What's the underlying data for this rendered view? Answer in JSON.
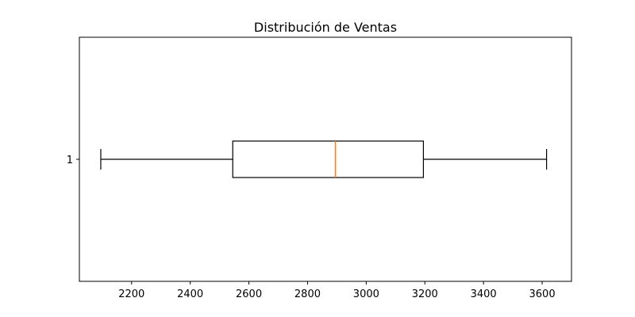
{
  "chart_data": {
    "type": "boxplot",
    "title": "Distribución de Ventas",
    "orientation": "horizontal",
    "xlim": [
      2022,
      3700
    ],
    "x_ticks": [
      2200,
      2400,
      2600,
      2800,
      3000,
      3200,
      3400,
      3600
    ],
    "y_tick_labels": [
      "1"
    ],
    "boxes": [
      {
        "label": "1",
        "whisker_low": 2095,
        "q1": 2545,
        "median": 2895,
        "q3": 3195,
        "whisker_high": 3615
      }
    ],
    "colors": {
      "box": "#000000",
      "median": "#ff7f0e",
      "axes": "#000000"
    },
    "grid": false,
    "legend": "none"
  }
}
